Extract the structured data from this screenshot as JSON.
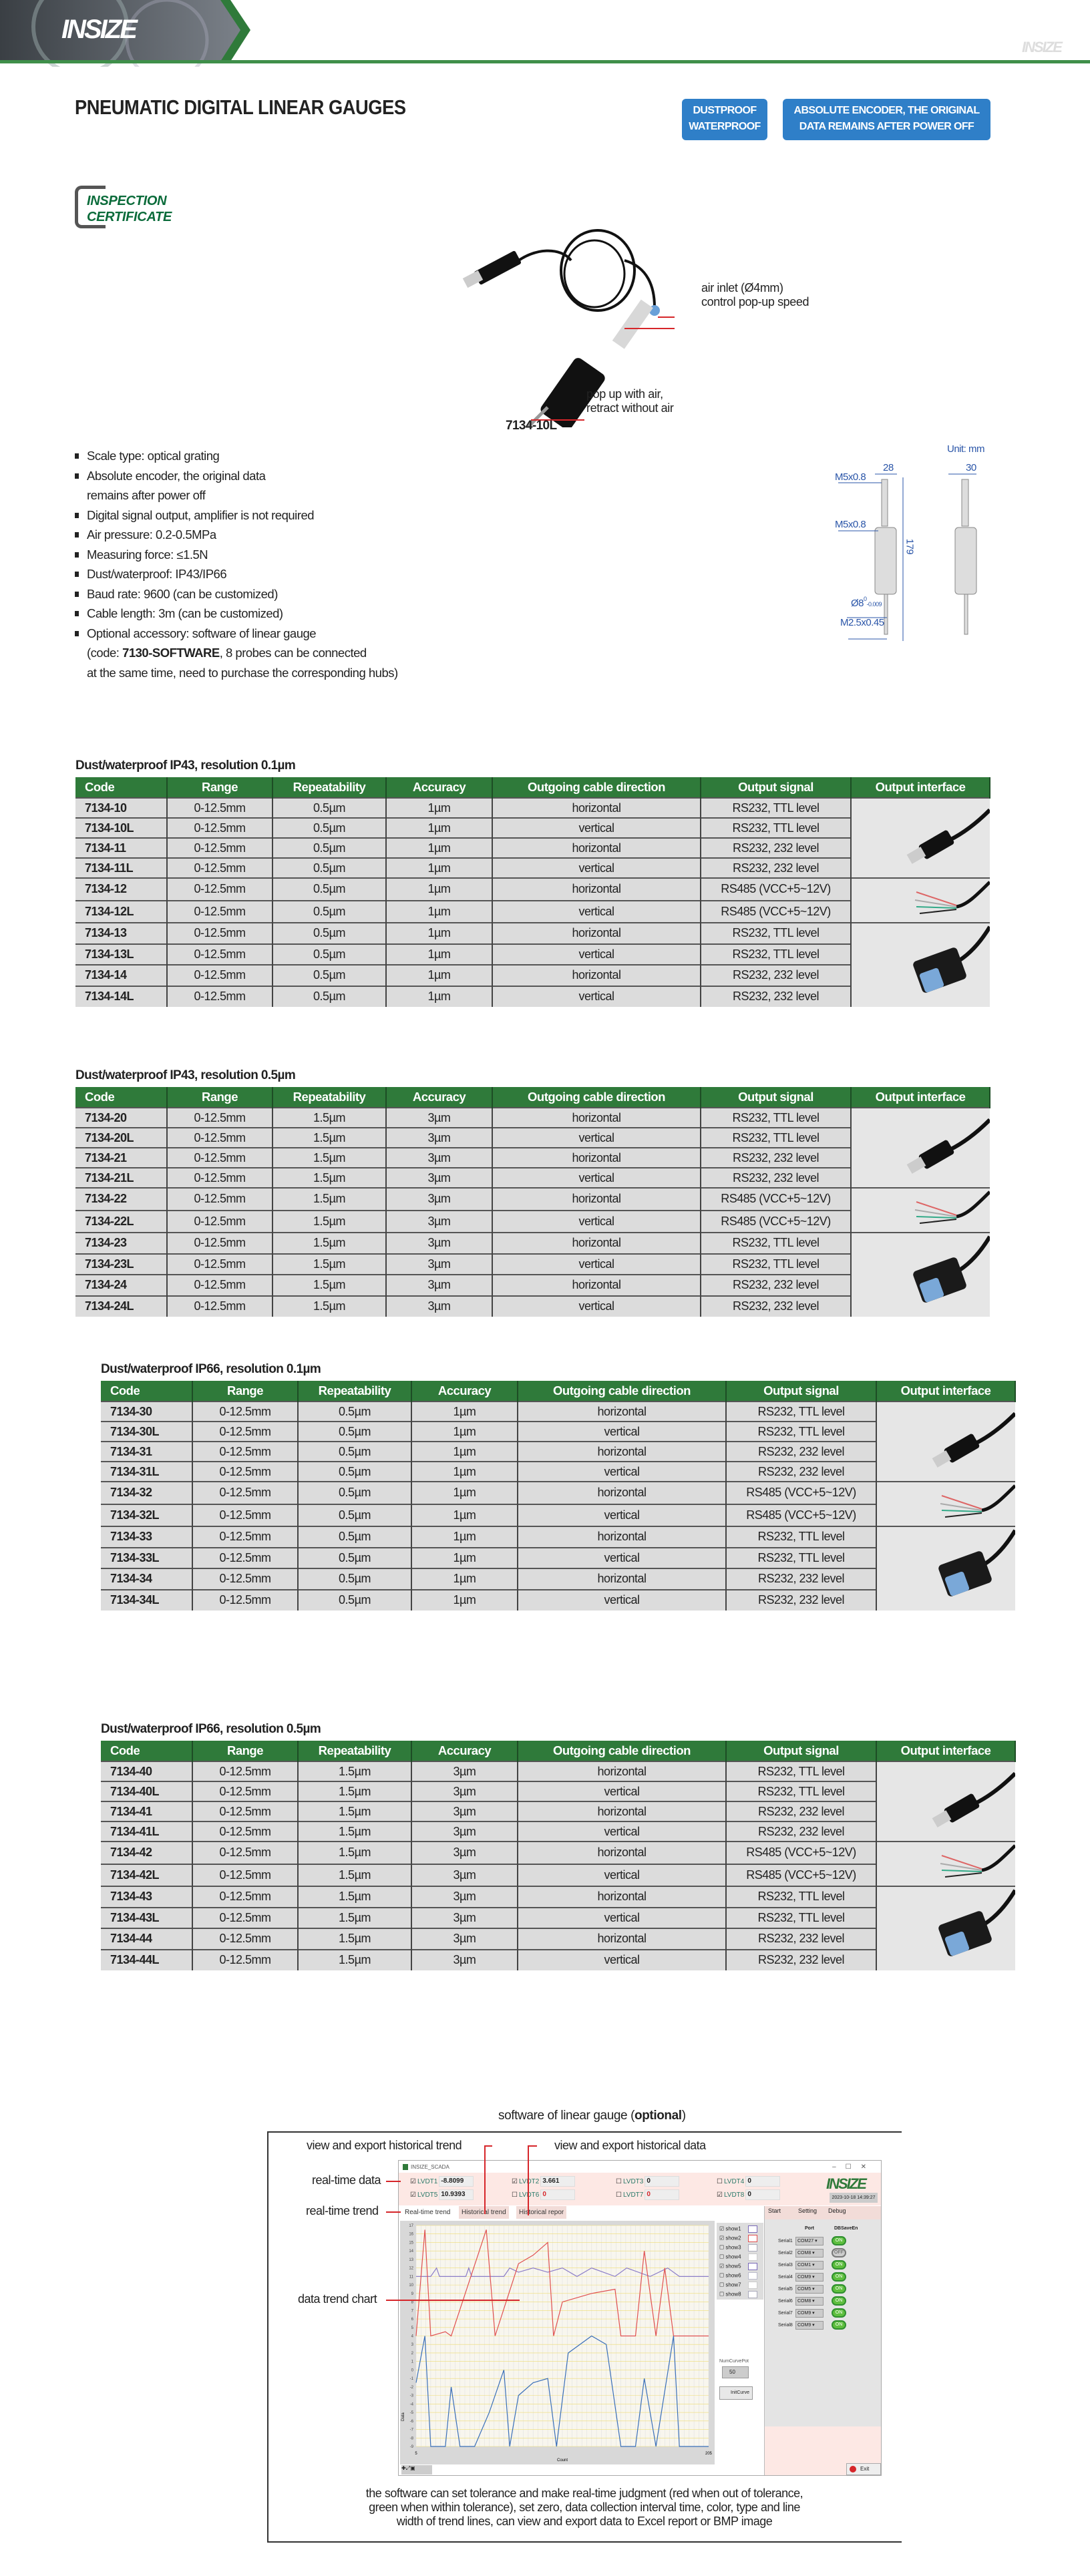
{
  "header": {
    "brand": "INSIZE",
    "watermark": "INSIZE",
    "accent_color": "#3f8f4a"
  },
  "page_title": "PNEUMATIC DIGITAL LINEAR GAUGES",
  "badges": [
    {
      "line1": "DUSTPROOF",
      "line2": "WATERPROOF"
    },
    {
      "line1": "ABSOLUTE ENCODER, THE ORIGINAL",
      "line2": "DATA REMAINS AFTER POWER OFF"
    }
  ],
  "certificate": {
    "line1": "INSPECTION",
    "line2": "CERTIFICATE"
  },
  "product": {
    "model": "7134-10L",
    "callouts": {
      "air_inlet": "air inlet (Ø4mm)",
      "speed": "control pop-up speed",
      "popup1": "pop up with air,",
      "popup2": "retract without air"
    }
  },
  "specs": [
    "Scale type: optical grating",
    "Absolute encoder, the original data",
    "remains after power off",
    "Digital signal output, amplifier is not required",
    "Air pressure: 0.2-0.5MPa",
    "Measuring force: ≤1.5N",
    "Dust/waterproof: IP43/IP66",
    "Baud rate: 9600 (can be customized)",
    "Cable length: 3m (can be customized)",
    "Optional accessory: software of linear gauge",
    "(code: ",
    "7130-SOFTWARE",
    ", 8 probes can be connected",
    "at the same time, need to purchase the corresponding hubs)"
  ],
  "drawing": {
    "unit": "Unit: mm",
    "width1": "28",
    "width2": "30",
    "thread1": "M5x0.8",
    "thread2": "M5x0.8",
    "length": "179",
    "dia": "Ø8",
    "tol_upper": "0",
    "tol_lower": "-0.009",
    "tip_thread": "M2.5x0.45"
  },
  "table_headers": [
    "Code",
    "Range",
    "Repeatability",
    "Accuracy",
    "Outgoing cable direction",
    "Output signal",
    "Output interface"
  ],
  "tables": [
    {
      "title": "Dust/waterproof IP43, resolution 0.1µm",
      "rows": [
        [
          "7134-10",
          "0-12.5mm",
          "0.5µm",
          "1µm",
          "horizontal",
          "RS232, TTL level"
        ],
        [
          "7134-10L",
          "0-12.5mm",
          "0.5µm",
          "1µm",
          "vertical",
          "RS232, TTL level"
        ],
        [
          "7134-11",
          "0-12.5mm",
          "0.5µm",
          "1µm",
          "horizontal",
          "RS232, 232 level"
        ],
        [
          "7134-11L",
          "0-12.5mm",
          "0.5µm",
          "1µm",
          "vertical",
          "RS232, 232 level"
        ],
        [
          "7134-12",
          "0-12.5mm",
          "0.5µm",
          "1µm",
          "horizontal",
          "RS485 (VCC+5~12V)"
        ],
        [
          "7134-12L",
          "0-12.5mm",
          "0.5µm",
          "1µm",
          "vertical",
          "RS485 (VCC+5~12V)"
        ],
        [
          "7134-13",
          "0-12.5mm",
          "0.5µm",
          "1µm",
          "horizontal",
          "RS232, TTL level"
        ],
        [
          "7134-13L",
          "0-12.5mm",
          "0.5µm",
          "1µm",
          "vertical",
          "RS232, TTL level"
        ],
        [
          "7134-14",
          "0-12.5mm",
          "0.5µm",
          "1µm",
          "horizontal",
          "RS232, 232 level"
        ],
        [
          "7134-14L",
          "0-12.5mm",
          "0.5µm",
          "1µm",
          "vertical",
          "RS232, 232 level"
        ]
      ]
    },
    {
      "title": "Dust/waterproof IP43, resolution 0.5µm",
      "rows": [
        [
          "7134-20",
          "0-12.5mm",
          "1.5µm",
          "3µm",
          "horizontal",
          "RS232, TTL level"
        ],
        [
          "7134-20L",
          "0-12.5mm",
          "1.5µm",
          "3µm",
          "vertical",
          "RS232, TTL level"
        ],
        [
          "7134-21",
          "0-12.5mm",
          "1.5µm",
          "3µm",
          "horizontal",
          "RS232, 232 level"
        ],
        [
          "7134-21L",
          "0-12.5mm",
          "1.5µm",
          "3µm",
          "vertical",
          "RS232, 232 level"
        ],
        [
          "7134-22",
          "0-12.5mm",
          "1.5µm",
          "3µm",
          "horizontal",
          "RS485 (VCC+5~12V)"
        ],
        [
          "7134-22L",
          "0-12.5mm",
          "1.5µm",
          "3µm",
          "vertical",
          "RS485 (VCC+5~12V)"
        ],
        [
          "7134-23",
          "0-12.5mm",
          "1.5µm",
          "3µm",
          "horizontal",
          "RS232, TTL level"
        ],
        [
          "7134-23L",
          "0-12.5mm",
          "1.5µm",
          "3µm",
          "vertical",
          "RS232, TTL level"
        ],
        [
          "7134-24",
          "0-12.5mm",
          "1.5µm",
          "3µm",
          "horizontal",
          "RS232, 232 level"
        ],
        [
          "7134-24L",
          "0-12.5mm",
          "1.5µm",
          "3µm",
          "vertical",
          "RS232, 232 level"
        ]
      ]
    },
    {
      "title": "Dust/waterproof IP66, resolution 0.1µm",
      "rows": [
        [
          "7134-30",
          "0-12.5mm",
          "0.5µm",
          "1µm",
          "horizontal",
          "RS232, TTL level"
        ],
        [
          "7134-30L",
          "0-12.5mm",
          "0.5µm",
          "1µm",
          "vertical",
          "RS232, TTL level"
        ],
        [
          "7134-31",
          "0-12.5mm",
          "0.5µm",
          "1µm",
          "horizontal",
          "RS232, 232 level"
        ],
        [
          "7134-31L",
          "0-12.5mm",
          "0.5µm",
          "1µm",
          "vertical",
          "RS232, 232 level"
        ],
        [
          "7134-32",
          "0-12.5mm",
          "0.5µm",
          "1µm",
          "horizontal",
          "RS485 (VCC+5~12V)"
        ],
        [
          "7134-32L",
          "0-12.5mm",
          "0.5µm",
          "1µm",
          "vertical",
          "RS485 (VCC+5~12V)"
        ],
        [
          "7134-33",
          "0-12.5mm",
          "0.5µm",
          "1µm",
          "horizontal",
          "RS232, TTL level"
        ],
        [
          "7134-33L",
          "0-12.5mm",
          "0.5µm",
          "1µm",
          "vertical",
          "RS232, TTL level"
        ],
        [
          "7134-34",
          "0-12.5mm",
          "0.5µm",
          "1µm",
          "horizontal",
          "RS232, 232 level"
        ],
        [
          "7134-34L",
          "0-12.5mm",
          "0.5µm",
          "1µm",
          "vertical",
          "RS232, 232 level"
        ]
      ]
    },
    {
      "title": "Dust/waterproof IP66, resolution 0.5µm",
      "rows": [
        [
          "7134-40",
          "0-12.5mm",
          "1.5µm",
          "3µm",
          "horizontal",
          "RS232, TTL level"
        ],
        [
          "7134-40L",
          "0-12.5mm",
          "1.5µm",
          "3µm",
          "vertical",
          "RS232, TTL level"
        ],
        [
          "7134-41",
          "0-12.5mm",
          "1.5µm",
          "3µm",
          "horizontal",
          "RS232, 232 level"
        ],
        [
          "7134-41L",
          "0-12.5mm",
          "1.5µm",
          "3µm",
          "vertical",
          "RS232, 232 level"
        ],
        [
          "7134-42",
          "0-12.5mm",
          "1.5µm",
          "3µm",
          "horizontal",
          "RS485 (VCC+5~12V)"
        ],
        [
          "7134-42L",
          "0-12.5mm",
          "1.5µm",
          "3µm",
          "vertical",
          "RS485 (VCC+5~12V)"
        ],
        [
          "7134-43",
          "0-12.5mm",
          "1.5µm",
          "3µm",
          "horizontal",
          "RS232, TTL level"
        ],
        [
          "7134-43L",
          "0-12.5mm",
          "1.5µm",
          "3µm",
          "vertical",
          "RS232, TTL level"
        ],
        [
          "7134-44",
          "0-12.5mm",
          "1.5µm",
          "3µm",
          "horizontal",
          "RS232, 232 level"
        ],
        [
          "7134-44L",
          "0-12.5mm",
          "1.5µm",
          "3µm",
          "vertical",
          "RS232, 232 level"
        ]
      ]
    }
  ],
  "interfaces": [
    "usb-connector",
    "bare-wires",
    "db9-connector"
  ],
  "software": {
    "title_prefix": "software of linear gauge (",
    "title_bold": "optional",
    "title_suffix": ")",
    "annotations": {
      "hist_trend": "view and export historical trend",
      "hist_data": "view and export historical data",
      "realtime_data": "real-time data",
      "realtime_trend": "real-time trend",
      "trend_chart": "data trend chart"
    },
    "window": {
      "title": "INSIZE_SCADA",
      "datetime": "2023-10-18 14:39:27",
      "lvdt": [
        {
          "name": "LVDT1",
          "value": "-8.8099",
          "checked": true
        },
        {
          "name": "LVDT2",
          "value": "3.661",
          "checked": true
        },
        {
          "name": "LVDT3",
          "value": "0",
          "checked": false
        },
        {
          "name": "LVDT4",
          "value": "0",
          "checked": false
        },
        {
          "name": "LVDT5",
          "value": "10.9393",
          "checked": true
        },
        {
          "name": "LVDT6",
          "value": "0",
          "checked": false
        },
        {
          "name": "LVDT7",
          "value": "0",
          "checked": false
        },
        {
          "name": "LVDT8",
          "value": "0",
          "checked": true
        }
      ],
      "tabs": [
        "Real-time trend",
        "Historical trend",
        "Historical repor"
      ],
      "side_tabs": [
        "Start",
        "Setting",
        "Debug"
      ],
      "y_ticks": [
        "17",
        "16",
        "15",
        "14",
        "13",
        "12",
        "11",
        "10",
        "9",
        "8",
        "7",
        "6",
        "5",
        "4",
        "3",
        "2",
        "1",
        "0",
        "-1",
        "-2",
        "-3",
        "-4",
        "-5",
        "-6",
        "-7",
        "-8",
        "-9"
      ],
      "y_label": "Data",
      "x_label": "Count",
      "x_min": "5",
      "x_max": "205",
      "shows": [
        "show1",
        "show2",
        "show3",
        "show4",
        "show5",
        "show6",
        "show7",
        "show8"
      ],
      "show_checked": [
        true,
        true,
        false,
        false,
        true,
        false,
        false,
        false
      ],
      "num_curve_label": "NumCurvePot",
      "num_curve_value": "50",
      "init_curve": "InitCurve",
      "port_header": "Port",
      "dbsave_header": "DBSaveEn",
      "serials": [
        {
          "name": "Serial1",
          "port": "COM27",
          "state": "ON"
        },
        {
          "name": "Serial2",
          "port": "COM8",
          "state": "OFF"
        },
        {
          "name": "Serial3",
          "port": "COM1",
          "state": "ON"
        },
        {
          "name": "Serial4",
          "port": "COM9",
          "state": "ON"
        },
        {
          "name": "Serial5",
          "port": "COM5",
          "state": "ON"
        },
        {
          "name": "Serial6",
          "port": "COM8",
          "state": "ON"
        },
        {
          "name": "Serial7",
          "port": "COM9",
          "state": "ON"
        },
        {
          "name": "Serial8",
          "port": "COM9",
          "state": "ON"
        }
      ],
      "exit": "Exit"
    },
    "caption": [
      "the software can set tolerance and make real-time judgment (red when out of tolerance,",
      "green when within tolerance), set zero, data collection interval time, color, type and line",
      "width of trend lines, can view and export data to Excel report or BMP image"
    ]
  }
}
